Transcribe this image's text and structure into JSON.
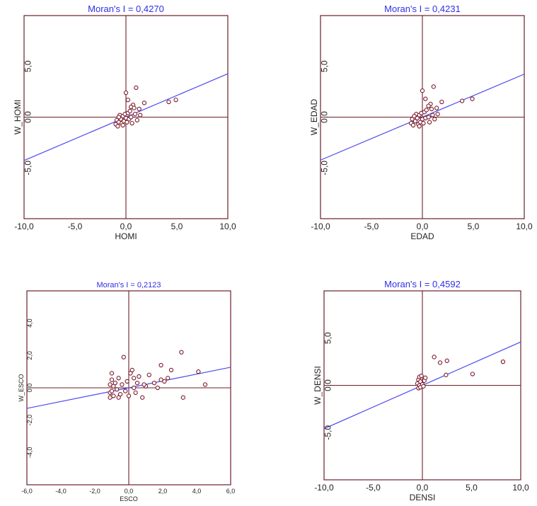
{
  "chart_data": [
    {
      "type": "scatter",
      "title": "Moran's I = 0,4270",
      "xlabel": "HOMI",
      "ylabel": "W_HOMI",
      "xlim": [
        -10,
        10
      ],
      "ylim": [
        -10,
        10
      ],
      "x_ticks": [
        -10,
        -5,
        0,
        5,
        10
      ],
      "x_tick_labels": [
        "-10,0",
        "-5,0",
        "0,0",
        "5,0",
        "10,0"
      ],
      "y_ticks": [
        5,
        0,
        -5
      ],
      "y_tick_labels": [
        "5,0",
        "0,0",
        "-5,0"
      ],
      "regression_line": {
        "slope": 0.427,
        "intercept": 0
      },
      "colors": {
        "points": "#7a1a2a",
        "line": "#4b4bf0",
        "frame": "#6b1f2a",
        "title": "#2f2fe6"
      },
      "points": [
        [
          -1.0,
          -0.7
        ],
        [
          -0.9,
          -0.3
        ],
        [
          -0.8,
          -0.9
        ],
        [
          -0.7,
          -0.5
        ],
        [
          -0.6,
          0.2
        ],
        [
          -0.5,
          -0.2
        ],
        [
          -0.4,
          -0.6
        ],
        [
          -0.3,
          0.1
        ],
        [
          -0.2,
          -0.4
        ],
        [
          -0.1,
          0.3
        ],
        [
          0.0,
          -0.1
        ],
        [
          0.1,
          -0.5
        ],
        [
          0.2,
          0.4
        ],
        [
          0.3,
          -0.2
        ],
        [
          0.4,
          0.6
        ],
        [
          0.5,
          0.0
        ],
        [
          0.7,
          1.2
        ],
        [
          0.9,
          0.3
        ],
        [
          1.1,
          -0.3
        ],
        [
          1.3,
          0.8
        ],
        [
          0.0,
          2.4
        ],
        [
          0.2,
          1.7
        ],
        [
          1.0,
          2.9
        ],
        [
          1.8,
          1.4
        ],
        [
          0.5,
          1.0
        ],
        [
          -0.3,
          -0.8
        ],
        [
          0.6,
          -0.6
        ],
        [
          1.4,
          0.2
        ],
        [
          4.2,
          1.5
        ],
        [
          4.9,
          1.7
        ],
        [
          -0.7,
          0.0
        ],
        [
          0.8,
          0.9
        ]
      ]
    },
    {
      "type": "scatter",
      "title": "Moran's I = 0,4231",
      "xlabel": "EDAD",
      "ylabel": "W_EDAD",
      "xlim": [
        -10,
        10
      ],
      "ylim": [
        -10,
        10
      ],
      "x_ticks": [
        -10,
        -5,
        0,
        5,
        10
      ],
      "x_tick_labels": [
        "-10,0",
        "-5,0",
        "0,0",
        "5,0",
        "10,0"
      ],
      "y_ticks": [
        5,
        0,
        -5
      ],
      "y_tick_labels": [
        "5,0",
        "0,0",
        "-5,0"
      ],
      "regression_line": {
        "slope": 0.4231,
        "intercept": 0
      },
      "colors": {
        "points": "#7a1a2a",
        "line": "#4b4bf0",
        "frame": "#6b1f2a",
        "title": "#2f2fe6"
      },
      "points": [
        [
          -1.1,
          -0.6
        ],
        [
          -1.0,
          -0.2
        ],
        [
          -0.9,
          -0.8
        ],
        [
          -0.7,
          -0.4
        ],
        [
          -0.6,
          0.3
        ],
        [
          -0.5,
          -0.1
        ],
        [
          -0.4,
          -0.7
        ],
        [
          -0.3,
          0.2
        ],
        [
          -0.2,
          -0.5
        ],
        [
          -0.1,
          0.4
        ],
        [
          0.0,
          -0.2
        ],
        [
          0.1,
          -0.6
        ],
        [
          0.2,
          0.5
        ],
        [
          0.3,
          -0.1
        ],
        [
          0.4,
          0.7
        ],
        [
          0.6,
          0.0
        ],
        [
          0.8,
          1.3
        ],
        [
          1.0,
          0.2
        ],
        [
          1.2,
          -0.2
        ],
        [
          1.4,
          0.9
        ],
        [
          0.0,
          2.6
        ],
        [
          0.3,
          1.8
        ],
        [
          1.1,
          3.0
        ],
        [
          1.9,
          1.5
        ],
        [
          0.6,
          1.1
        ],
        [
          -0.3,
          -0.9
        ],
        [
          0.7,
          -0.5
        ],
        [
          1.5,
          0.3
        ],
        [
          3.9,
          1.6
        ],
        [
          4.9,
          1.8
        ],
        [
          -0.8,
          0.1
        ],
        [
          0.9,
          0.8
        ]
      ]
    },
    {
      "type": "scatter",
      "title": "Moran's I = 0,2123",
      "xlabel": "ESCO",
      "ylabel": "W_ESCO",
      "xlim": [
        -6,
        6
      ],
      "ylim": [
        -6,
        6
      ],
      "x_ticks": [
        -6,
        -4,
        -2,
        0,
        2,
        4,
        6
      ],
      "x_tick_labels": [
        "-6,0",
        "-4,0",
        "-2,0",
        "0,0",
        "2,0",
        "4,0",
        "6,0"
      ],
      "y_ticks": [
        4,
        2,
        0,
        -2,
        -4
      ],
      "y_tick_labels": [
        "4,0",
        "2,0",
        "0,0",
        "-2,0",
        "-4,0"
      ],
      "regression_line": {
        "slope": 0.2123,
        "intercept": 0
      },
      "colors": {
        "points": "#7a1a2a",
        "line": "#4b4bf0",
        "frame": "#6b1f2a",
        "title": "#2f2fe6"
      },
      "points": [
        [
          -1.1,
          0.2
        ],
        [
          -1.1,
          -0.3
        ],
        [
          -1.1,
          -0.6
        ],
        [
          -1.0,
          0.5
        ],
        [
          -1.0,
          0.9
        ],
        [
          -1.0,
          -0.2
        ],
        [
          -0.9,
          0.1
        ],
        [
          -0.9,
          -0.5
        ],
        [
          -0.8,
          0.3
        ],
        [
          -0.7,
          -0.1
        ],
        [
          -0.6,
          0.6
        ],
        [
          -0.5,
          -0.4
        ],
        [
          -0.4,
          0.2
        ],
        [
          -0.3,
          1.9
        ],
        [
          -0.2,
          -0.2
        ],
        [
          -0.1,
          0.4
        ],
        [
          0.0,
          -0.5
        ],
        [
          0.1,
          0.9
        ],
        [
          0.2,
          1.1
        ],
        [
          0.3,
          0.0
        ],
        [
          0.4,
          -0.3
        ],
        [
          0.5,
          0.3
        ],
        [
          0.6,
          0.7
        ],
        [
          0.8,
          -0.6
        ],
        [
          1.0,
          0.1
        ],
        [
          1.2,
          0.8
        ],
        [
          1.5,
          0.3
        ],
        [
          1.7,
          0.0
        ],
        [
          1.9,
          0.5
        ],
        [
          2.1,
          0.4
        ],
        [
          2.3,
          0.6
        ],
        [
          2.5,
          1.1
        ],
        [
          3.1,
          2.2
        ],
        [
          3.2,
          -0.6
        ],
        [
          4.1,
          1.0
        ],
        [
          4.5,
          0.2
        ],
        [
          1.9,
          1.4
        ],
        [
          0.9,
          0.2
        ],
        [
          -0.6,
          -0.6
        ],
        [
          0.3,
          0.6
        ]
      ]
    },
    {
      "type": "scatter",
      "title": "Moran's I = 0,4592",
      "xlabel": "DENSI",
      "ylabel": "W_DENSI",
      "xlim": [
        -10,
        10
      ],
      "ylim": [
        -10,
        10
      ],
      "x_ticks": [
        -10,
        -5,
        0,
        5,
        10
      ],
      "x_tick_labels": [
        "-10,0",
        "-5,0",
        "0,0",
        "5,0",
        "10,0"
      ],
      "y_ticks": [
        5,
        0,
        -5
      ],
      "y_tick_labels": [
        "5,0",
        "0,0",
        "-5,0"
      ],
      "regression_line": {
        "slope": 0.4592,
        "intercept": 0
      },
      "colors": {
        "points": "#7a1a2a",
        "line": "#4b4bf0",
        "frame": "#6b1f2a",
        "title": "#2f2fe6"
      },
      "points": [
        [
          -0.5,
          0.2
        ],
        [
          -0.4,
          -0.3
        ],
        [
          -0.4,
          0.6
        ],
        [
          -0.3,
          0.0
        ],
        [
          -0.3,
          0.9
        ],
        [
          -0.2,
          -0.2
        ],
        [
          -0.2,
          0.4
        ],
        [
          -0.1,
          1.0
        ],
        [
          0.0,
          0.1
        ],
        [
          0.1,
          -0.1
        ],
        [
          0.2,
          0.5
        ],
        [
          0.3,
          0.8
        ],
        [
          1.2,
          3.0
        ],
        [
          1.8,
          2.4
        ],
        [
          2.4,
          1.1
        ],
        [
          2.5,
          2.6
        ],
        [
          5.1,
          1.2
        ],
        [
          8.2,
          2.5
        ]
      ]
    }
  ]
}
